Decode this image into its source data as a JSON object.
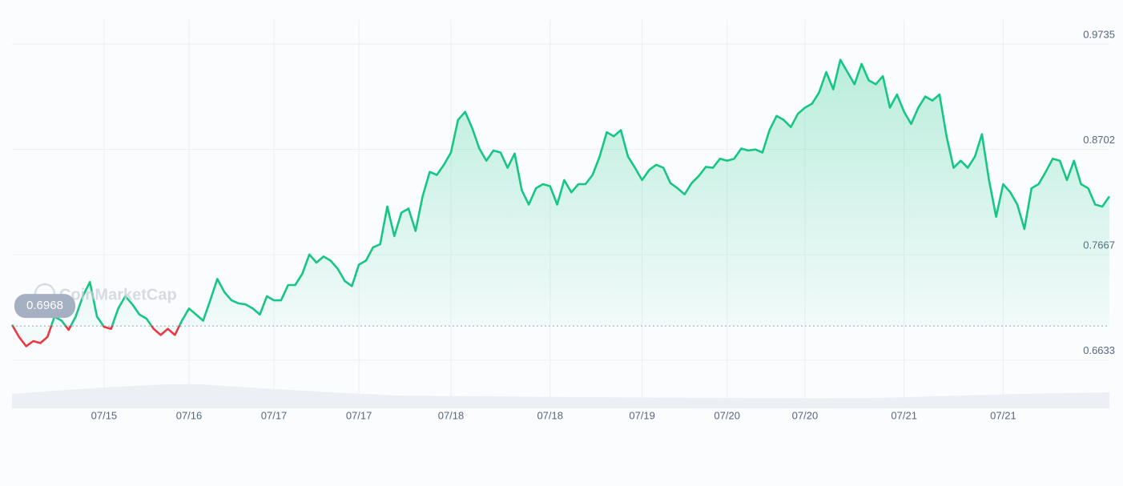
{
  "chart_data": {
    "type": "line",
    "watermark": "CoinMarketCap",
    "baseline": 0.6968,
    "up_color": "#16c784",
    "down_color": "#ea3943",
    "grid": true,
    "ylim": [
      0.616,
      0.9735
    ],
    "yticks": [
      0.6633,
      0.7667,
      0.8702,
      0.9735
    ],
    "categories": [
      null,
      null,
      null,
      null,
      null,
      null,
      null,
      null,
      null,
      null,
      null,
      null,
      null,
      "07/15",
      null,
      null,
      null,
      null,
      null,
      null,
      null,
      null,
      null,
      null,
      null,
      "07/16",
      null,
      null,
      null,
      null,
      null,
      null,
      null,
      null,
      null,
      null,
      null,
      "07/17",
      null,
      null,
      null,
      null,
      null,
      null,
      null,
      null,
      null,
      null,
      null,
      "07/17",
      null,
      null,
      null,
      null,
      null,
      null,
      null,
      null,
      null,
      null,
      null,
      null,
      "07/18",
      null,
      null,
      null,
      null,
      null,
      null,
      null,
      null,
      null,
      null,
      null,
      null,
      null,
      "07/18",
      null,
      null,
      null,
      null,
      null,
      null,
      null,
      null,
      null,
      null,
      null,
      null,
      "07/19",
      null,
      null,
      null,
      null,
      null,
      null,
      null,
      null,
      null,
      null,
      null,
      "07/20",
      null,
      null,
      null,
      null,
      null,
      null,
      null,
      null,
      null,
      null,
      "07/20",
      null,
      null,
      null,
      null,
      null,
      null,
      null,
      null,
      null,
      null,
      null,
      null,
      null,
      "07/21",
      null,
      null,
      null,
      null,
      null,
      null,
      null,
      null,
      null,
      null,
      null,
      null,
      null,
      "07/21",
      null,
      null,
      null,
      null,
      null,
      null,
      null,
      null,
      null,
      null,
      null,
      null,
      null,
      null,
      null
    ],
    "values": [
      0.698,
      0.686,
      0.677,
      0.682,
      0.68,
      0.686,
      0.706,
      0.702,
      0.693,
      0.706,
      0.726,
      0.74,
      0.706,
      0.696,
      0.694,
      0.714,
      0.726,
      0.718,
      0.708,
      0.704,
      0.694,
      0.688,
      0.694,
      0.688,
      0.702,
      0.714,
      0.708,
      0.702,
      0.722,
      0.743,
      0.73,
      0.722,
      0.719,
      0.718,
      0.714,
      0.708,
      0.726,
      0.722,
      0.722,
      0.737,
      0.737,
      0.748,
      0.767,
      0.759,
      0.765,
      0.761,
      0.753,
      0.741,
      0.736,
      0.757,
      0.761,
      0.774,
      0.777,
      0.814,
      0.785,
      0.808,
      0.812,
      0.79,
      0.824,
      0.848,
      0.845,
      0.855,
      0.867,
      0.899,
      0.907,
      0.891,
      0.871,
      0.859,
      0.869,
      0.867,
      0.852,
      0.866,
      0.83,
      0.816,
      0.832,
      0.836,
      0.834,
      0.816,
      0.84,
      0.828,
      0.836,
      0.836,
      0.845,
      0.863,
      0.887,
      0.883,
      0.889,
      0.863,
      0.852,
      0.84,
      0.85,
      0.855,
      0.852,
      0.837,
      0.832,
      0.826,
      0.837,
      0.844,
      0.853,
      0.852,
      0.861,
      0.859,
      0.861,
      0.871,
      0.869,
      0.87,
      0.867,
      0.889,
      0.903,
      0.899,
      0.892,
      0.905,
      0.911,
      0.915,
      0.926,
      0.946,
      0.929,
      0.958,
      0.946,
      0.934,
      0.954,
      0.938,
      0.934,
      0.942,
      0.911,
      0.924,
      0.907,
      0.895,
      0.911,
      0.922,
      0.918,
      0.924,
      0.883,
      0.852,
      0.859,
      0.852,
      0.863,
      0.885,
      0.84,
      0.804,
      0.836,
      0.828,
      0.816,
      0.792,
      0.832,
      0.836,
      0.848,
      0.861,
      0.859,
      0.84,
      0.859,
      0.836,
      0.832,
      0.816,
      0.814,
      0.824
    ]
  }
}
